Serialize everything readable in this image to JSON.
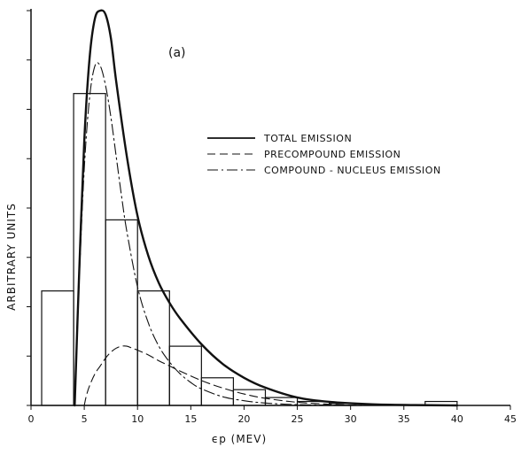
{
  "chart_data": {
    "type": "line",
    "panel_label": "(a)",
    "xlabel": "ϵp (MEV)",
    "ylabel": "ARBITRARY UNITS",
    "xlim": [
      0,
      45
    ],
    "ylim": [
      0,
      1
    ],
    "x_ticks": [
      0,
      5,
      10,
      15,
      20,
      25,
      30,
      35,
      40,
      45
    ],
    "x_tick_labels": [
      "0",
      "5",
      "10",
      "15",
      "20",
      "25",
      "30",
      "35",
      "40",
      "45"
    ],
    "y_tick_values": [
      0,
      0.125,
      0.25,
      0.375,
      0.5,
      0.625,
      0.75,
      0.875,
      1.0
    ],
    "y_ticks_labeled": false,
    "legend": {
      "placement": "upper-right",
      "entries": [
        {
          "series": "total",
          "label": "TOTAL EMISSION",
          "style": "solid"
        },
        {
          "series": "precompound",
          "label": "PRECOMPOUND EMISSION",
          "style": "dashed"
        },
        {
          "series": "compound",
          "label": "COMPOUND - NUCLEUS EMISSION",
          "style": "dash-dot"
        }
      ]
    },
    "histogram": {
      "name": "",
      "edges": [
        1,
        4,
        7,
        10,
        13,
        16,
        19,
        22,
        25,
        28,
        31,
        37,
        40
      ],
      "values": [
        0.29,
        0.79,
        0.47,
        0.29,
        0.15,
        0.07,
        0.04,
        0.02,
        0.01,
        0.005,
        0,
        0.01
      ]
    },
    "series": [
      {
        "id": "total",
        "name": "TOTAL EMISSION",
        "style": "solid",
        "x": [
          4.1,
          4.5,
          5.0,
          5.5,
          6.0,
          6.5,
          7.0,
          7.5,
          8.0,
          9.0,
          10.0,
          11.0,
          12.0,
          13.0,
          14.0,
          16.0,
          18.0,
          20.0,
          22.0,
          25.0,
          28.0,
          32.0,
          36.0,
          40.0
        ],
        "y": [
          0.0,
          0.32,
          0.67,
          0.88,
          0.98,
          1.0,
          0.99,
          0.93,
          0.82,
          0.63,
          0.48,
          0.38,
          0.31,
          0.26,
          0.22,
          0.155,
          0.105,
          0.07,
          0.045,
          0.02,
          0.009,
          0.003,
          0.001,
          0.0
        ]
      },
      {
        "id": "precompound",
        "name": "PRECOMPOUND EMISSION",
        "style": "dashed",
        "x": [
          5.0,
          5.2,
          5.5,
          6.0,
          6.5,
          7.0,
          7.5,
          8.0,
          8.5,
          9.0,
          9.5,
          10.0,
          11.0,
          12.0,
          13.0,
          14.0,
          16.0,
          18.0,
          20.0,
          22.0,
          25.0,
          28.0,
          31.0
        ],
        "y": [
          0.0,
          0.025,
          0.05,
          0.08,
          0.1,
          0.12,
          0.135,
          0.145,
          0.15,
          0.15,
          0.145,
          0.14,
          0.128,
          0.113,
          0.1,
          0.087,
          0.063,
          0.044,
          0.029,
          0.018,
          0.008,
          0.003,
          0.0
        ]
      },
      {
        "id": "compound",
        "name": "COMPOUND - NUCLEUS EMISSION",
        "style": "dash-dot",
        "x": [
          4.1,
          4.5,
          5.0,
          5.5,
          6.0,
          6.5,
          7.0,
          7.5,
          8.0,
          8.5,
          9.0,
          10.0,
          11.0,
          12.0,
          13.0,
          14.0,
          15.0,
          16.0,
          18.0,
          20.0,
          22.0,
          25.0,
          28.0,
          31.0
        ],
        "y": [
          0.0,
          0.3,
          0.6,
          0.78,
          0.86,
          0.86,
          0.81,
          0.73,
          0.63,
          0.53,
          0.44,
          0.3,
          0.21,
          0.15,
          0.11,
          0.08,
          0.058,
          0.042,
          0.022,
          0.012,
          0.006,
          0.002,
          0.001,
          0.0
        ]
      }
    ]
  }
}
